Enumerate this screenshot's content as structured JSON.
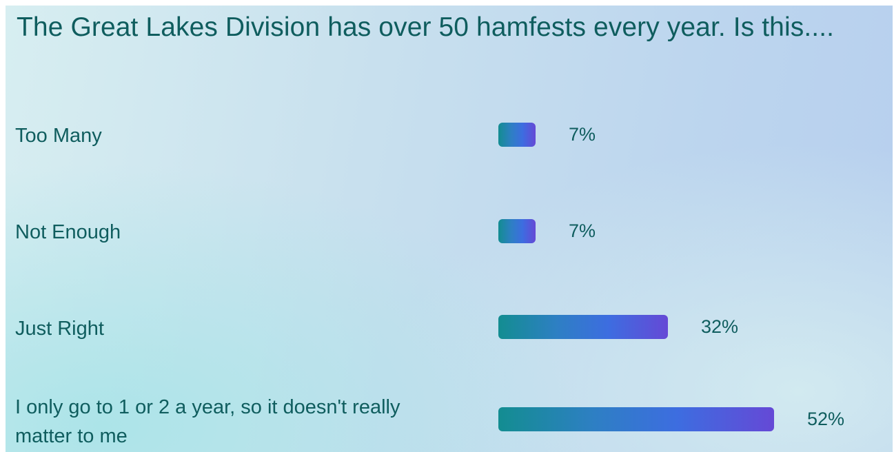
{
  "chart_data": {
    "type": "bar",
    "title": "The Great Lakes Division has over 50 hamfests every year.  Is this....",
    "orientation": "horizontal",
    "categories": [
      "Too Many",
      "Not Enough",
      "Just Right",
      "I only go to 1 or 2 a year, so it doesn't really matter to me"
    ],
    "values": [
      7,
      7,
      32,
      52
    ],
    "value_labels": [
      "7%",
      "7%",
      "32%",
      "52%"
    ],
    "unit": "%",
    "xlim": [
      0,
      100
    ],
    "grid": false,
    "colors": {
      "bar_start": "#138d91",
      "bar_mid": "#3d6de0",
      "bar_end": "#6549d6",
      "text": "#0f5d5e"
    }
  }
}
